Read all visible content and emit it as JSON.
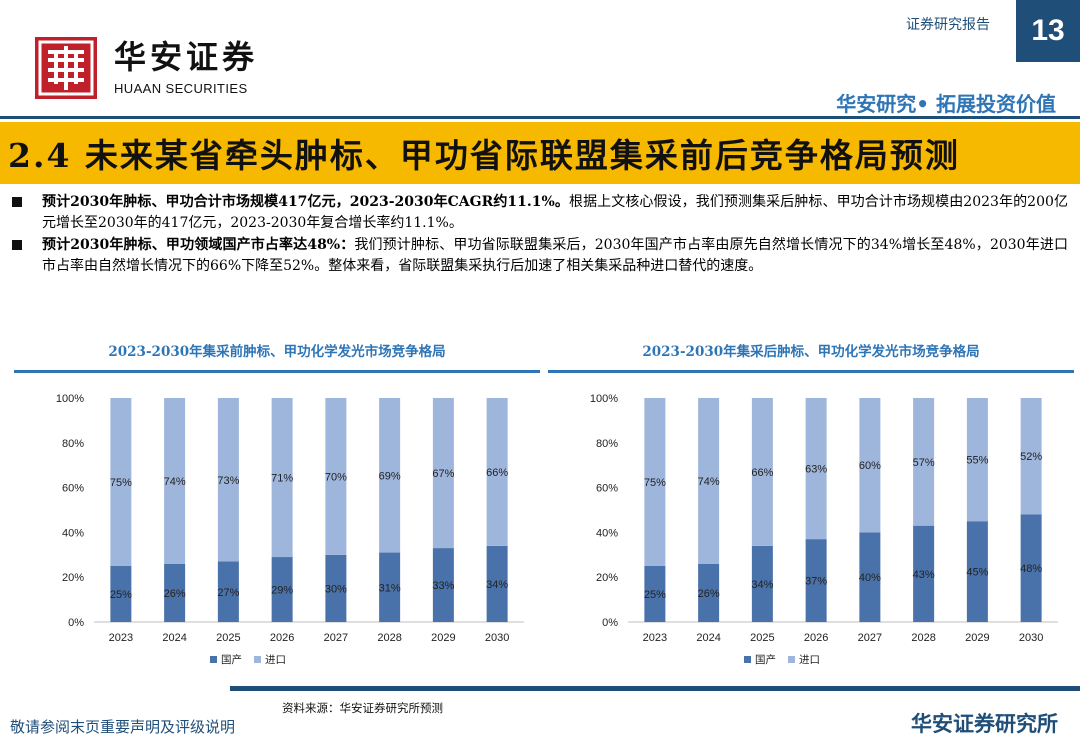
{
  "header": {
    "label": "证券研究报告",
    "page_number": "13",
    "logo_cn": "华安证券",
    "logo_en": "HUAAN SECURITIES",
    "slogan": "华安研究• 拓展投资价值",
    "brand_color": "#1f4e79"
  },
  "title": "2.4 未来某省牵头肿标、甲功省际联盟集采前后竞争格局预测",
  "bullets": [
    {
      "bold": "预计2030年肿标、甲功合计市场规模417亿元，2023-2030年CAGR约11.1%。",
      "text": "根据上文核心假设，我们预测集采后肿标、甲功合计市场规模由2023年的200亿元增长至2030年的417亿元，2023-2030年复合增长率约11.1%。"
    },
    {
      "bold": "预计2030年肿标、甲功领域国产市占率达48%：",
      "text": "我们预计肿标、甲功省际联盟集采后，2030年国产市占率由原先自然增长情况下的34%增长至48%，2030年进口市占率由自然增长情况下的66%下降至52%。整体来看，省际联盟集采执行后加速了相关集采品种进口替代的速度。"
    }
  ],
  "chart_data": [
    {
      "type": "bar",
      "stacked": true,
      "title": "2023-2030年集采前肿标、甲功化学发光市场竞争格局",
      "categories": [
        "2023",
        "2024",
        "2025",
        "2026",
        "2027",
        "2028",
        "2029",
        "2030"
      ],
      "series": [
        {
          "name": "国产",
          "values": [
            25,
            26,
            27,
            29,
            30,
            31,
            33,
            34
          ],
          "color": "#4a72aa"
        },
        {
          "name": "进口",
          "values": [
            75,
            74,
            73,
            71,
            70,
            69,
            67,
            66
          ],
          "color": "#9fb6dc"
        }
      ],
      "ylim": [
        0,
        100
      ],
      "yticks": [
        "0%",
        "20%",
        "40%",
        "60%",
        "80%",
        "100%"
      ],
      "legend": "bottom"
    },
    {
      "type": "bar",
      "stacked": true,
      "title": "2023-2030年集采后肿标、甲功化学发光市场竞争格局",
      "categories": [
        "2023",
        "2024",
        "2025",
        "2026",
        "2027",
        "2028",
        "2029",
        "2030"
      ],
      "series": [
        {
          "name": "国产",
          "values": [
            25,
            26,
            34,
            37,
            40,
            43,
            45,
            48
          ],
          "color": "#4a72aa"
        },
        {
          "name": "进口",
          "values": [
            75,
            74,
            66,
            63,
            60,
            57,
            55,
            52
          ],
          "color": "#9fb6dc"
        }
      ],
      "ylim": [
        0,
        100
      ],
      "yticks": [
        "0%",
        "20%",
        "40%",
        "60%",
        "80%",
        "100%"
      ],
      "legend": "bottom"
    }
  ],
  "footer": {
    "source": "资料来源：华安证券研究所预测",
    "disclaimer": "敬请参阅末页重要声明及评级说明",
    "brand": "华安证券研究所"
  }
}
